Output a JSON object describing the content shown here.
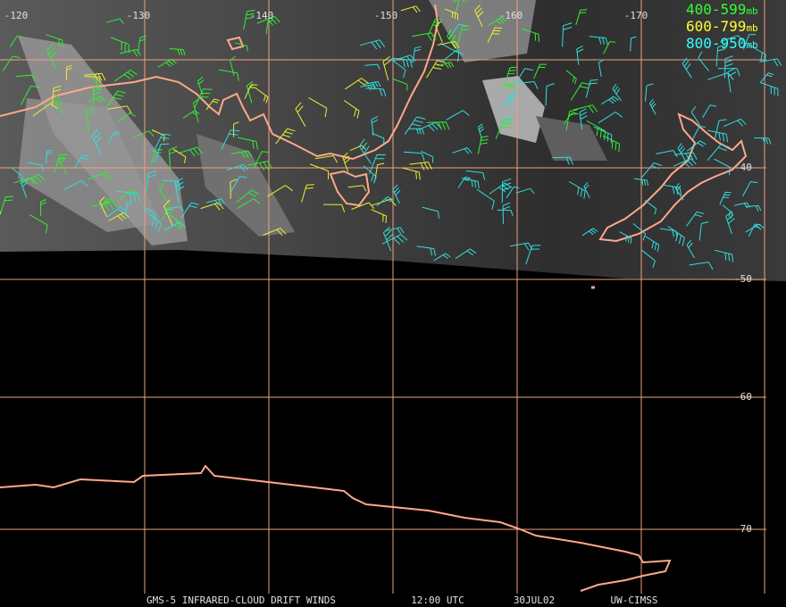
{
  "map": {
    "longitude_labels": [
      "-120",
      "-130",
      "-140",
      "-150",
      "-160",
      "-170"
    ],
    "latitude_labels": [
      "-40",
      "-50",
      "-60",
      "-70"
    ],
    "legend": [
      {
        "range": "400-599",
        "unit": "mb"
      },
      {
        "range": "600-799",
        "unit": "mb"
      },
      {
        "range": "800-950",
        "unit": "mb"
      }
    ],
    "footer": [
      "GMS-5 INFRARED-CLOUD DRIFT WINDS",
      "12:00 UTC",
      "30JUL02",
      "UW-CIMSS"
    ]
  }
}
